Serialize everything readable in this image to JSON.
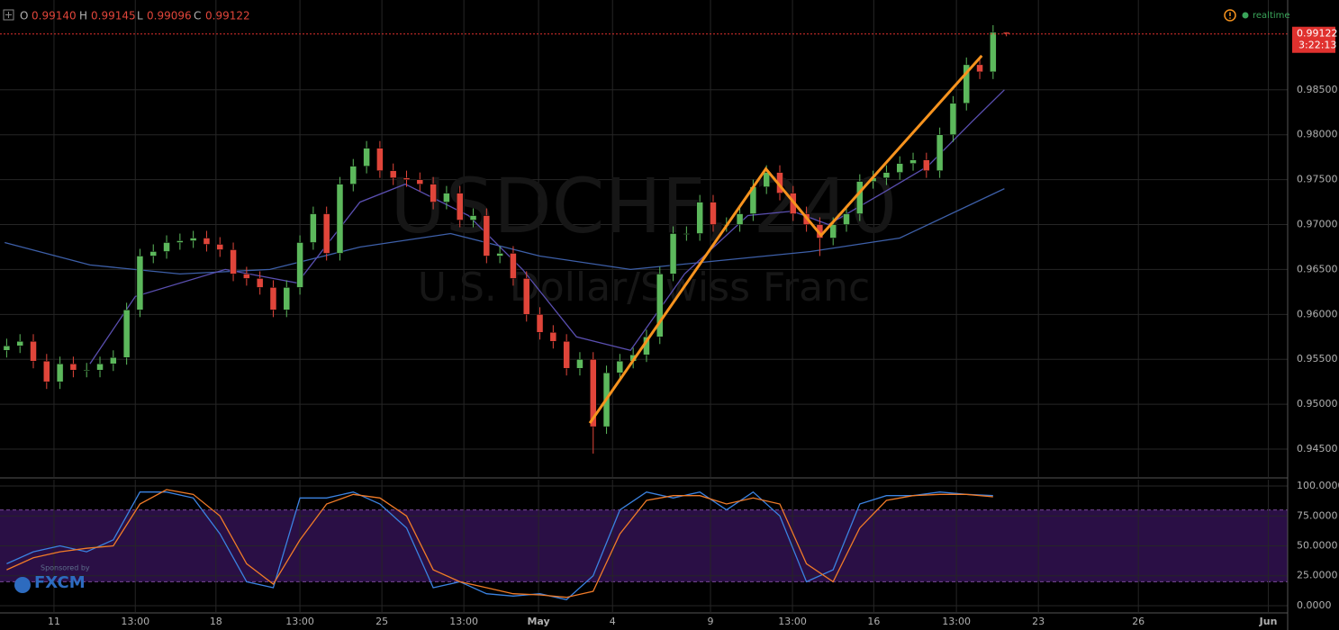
{
  "header": {
    "ohlc": [
      {
        "label": "O",
        "value": "0.99140"
      },
      {
        "label": "H",
        "value": "0.99145"
      },
      {
        "label": "L",
        "value": "0.99096"
      },
      {
        "label": "C",
        "value": "0.99122"
      }
    ],
    "status": "realtime"
  },
  "sponsor": {
    "note": "Sponsored by",
    "brand": "FXCM"
  },
  "chart_data": [
    {
      "type": "candlestick",
      "watermark": [
        "USDCHF, 240",
        "U.S. Dollar/Swiss Franc"
      ],
      "up_color": "#5cb85c",
      "down_color": "#e0453a",
      "xlim": [
        0,
        193.2
      ],
      "ylim": [
        0.9419,
        0.995
      ],
      "yticks": [
        {
          "value": 0.945,
          "label": "0.94500"
        },
        {
          "value": 0.95,
          "label": "0.95000"
        },
        {
          "value": 0.955,
          "label": "0.95500"
        },
        {
          "value": 0.96,
          "label": "0.96000"
        },
        {
          "value": 0.965,
          "label": "0.96500"
        },
        {
          "value": 0.97,
          "label": "0.97000"
        },
        {
          "value": 0.975,
          "label": "0.97500"
        },
        {
          "value": 0.98,
          "label": "0.98000"
        },
        {
          "value": 0.985,
          "label": "0.98500"
        }
      ],
      "last_price": 0.99122,
      "countdown": "3:22:13",
      "last_color": "#e0312e",
      "x": [
        1,
        3,
        5,
        7,
        9,
        11,
        13,
        15,
        17,
        19,
        21,
        23,
        25,
        27,
        29,
        31,
        33,
        35,
        37,
        39,
        41,
        43,
        45,
        47,
        49,
        51,
        53,
        55,
        57,
        59,
        61,
        63,
        65,
        67,
        69,
        71,
        73,
        75,
        77,
        79,
        81,
        83,
        85,
        87,
        89,
        91,
        93,
        95,
        97,
        99,
        101,
        103,
        105,
        107,
        109,
        111,
        113,
        115,
        117,
        119,
        121,
        123,
        125,
        127,
        129,
        131,
        133,
        135,
        137,
        139,
        141,
        143,
        145,
        147,
        149,
        151
      ],
      "open": [
        0.956,
        0.9565,
        0.957,
        0.9548,
        0.9525,
        0.9545,
        0.9538,
        0.9538,
        0.9545,
        0.9552,
        0.9605,
        0.9665,
        0.967,
        0.968,
        0.9682,
        0.9685,
        0.9678,
        0.9672,
        0.9645,
        0.964,
        0.963,
        0.9605,
        0.963,
        0.968,
        0.9712,
        0.9668,
        0.9745,
        0.9765,
        0.9785,
        0.976,
        0.9752,
        0.975,
        0.9745,
        0.9725,
        0.9735,
        0.9705,
        0.971,
        0.9665,
        0.9668,
        0.964,
        0.96,
        0.958,
        0.957,
        0.954,
        0.955,
        0.9475,
        0.9535,
        0.9548,
        0.9555,
        0.9575,
        0.9645,
        0.969,
        0.969,
        0.9725,
        0.97,
        0.97,
        0.9712,
        0.9742,
        0.9758,
        0.9735,
        0.9712,
        0.97,
        0.9685,
        0.97,
        0.9712,
        0.9748,
        0.9752,
        0.9758,
        0.9768,
        0.9772,
        0.976,
        0.98,
        0.9835,
        0.9878,
        0.987,
        0.9914
      ],
      "high": [
        0.9573,
        0.9578,
        0.9578,
        0.9556,
        0.9553,
        0.9553,
        0.9546,
        0.9553,
        0.956,
        0.9613,
        0.9673,
        0.9678,
        0.9688,
        0.969,
        0.9693,
        0.9693,
        0.9686,
        0.968,
        0.9653,
        0.9648,
        0.9638,
        0.9638,
        0.9688,
        0.972,
        0.972,
        0.9753,
        0.9773,
        0.9793,
        0.9793,
        0.9768,
        0.976,
        0.9758,
        0.9753,
        0.9743,
        0.9743,
        0.9718,
        0.9718,
        0.9676,
        0.9676,
        0.9648,
        0.9608,
        0.9588,
        0.9578,
        0.9558,
        0.9558,
        0.9543,
        0.9556,
        0.9563,
        0.9583,
        0.9653,
        0.9698,
        0.9698,
        0.9733,
        0.9733,
        0.9708,
        0.972,
        0.975,
        0.9766,
        0.9766,
        0.9743,
        0.972,
        0.9708,
        0.9708,
        0.972,
        0.9756,
        0.976,
        0.9766,
        0.9776,
        0.978,
        0.978,
        0.9808,
        0.9843,
        0.9886,
        0.9886,
        0.9922,
        0.99145
      ],
      "low": [
        0.9552,
        0.9557,
        0.954,
        0.9517,
        0.9517,
        0.953,
        0.953,
        0.953,
        0.9537,
        0.9544,
        0.9597,
        0.9657,
        0.9662,
        0.9672,
        0.9674,
        0.967,
        0.9664,
        0.9637,
        0.9632,
        0.9622,
        0.9597,
        0.9597,
        0.9622,
        0.9672,
        0.966,
        0.966,
        0.9737,
        0.9757,
        0.9752,
        0.9744,
        0.9742,
        0.9737,
        0.9717,
        0.9717,
        0.9697,
        0.9697,
        0.9657,
        0.9657,
        0.9632,
        0.9592,
        0.9572,
        0.9562,
        0.9532,
        0.9532,
        0.9445,
        0.9467,
        0.9527,
        0.954,
        0.9547,
        0.9567,
        0.9637,
        0.9682,
        0.9682,
        0.9692,
        0.9692,
        0.9692,
        0.9704,
        0.9734,
        0.9727,
        0.9704,
        0.9692,
        0.9665,
        0.9677,
        0.9692,
        0.9704,
        0.974,
        0.9744,
        0.975,
        0.976,
        0.9752,
        0.9752,
        0.9792,
        0.9827,
        0.9862,
        0.9862,
        0.99096
      ],
      "close": [
        0.9565,
        0.957,
        0.9548,
        0.9525,
        0.9545,
        0.9538,
        0.9538,
        0.9545,
        0.9552,
        0.9605,
        0.9665,
        0.967,
        0.968,
        0.9682,
        0.9685,
        0.9678,
        0.9672,
        0.9645,
        0.964,
        0.963,
        0.9605,
        0.963,
        0.968,
        0.9712,
        0.9668,
        0.9745,
        0.9765,
        0.9785,
        0.976,
        0.9752,
        0.975,
        0.9745,
        0.9725,
        0.9735,
        0.9705,
        0.971,
        0.9665,
        0.9668,
        0.964,
        0.96,
        0.958,
        0.957,
        0.954,
        0.955,
        0.9475,
        0.9535,
        0.9548,
        0.9555,
        0.9575,
        0.9645,
        0.969,
        0.969,
        0.9725,
        0.97,
        0.97,
        0.9712,
        0.9742,
        0.9758,
        0.9735,
        0.9712,
        0.97,
        0.9685,
        0.97,
        0.9712,
        0.9748,
        0.9752,
        0.9758,
        0.9768,
        0.9772,
        0.976,
        0.98,
        0.9835,
        0.9878,
        0.987,
        0.9914,
        0.99122
      ],
      "lines": [
        {
          "color": "#3d5fa8",
          "x": [
            0.7,
            13.5,
            27,
            40.5,
            54,
            67.6,
            81,
            94.6,
            108,
            121.6,
            135,
            150.7
          ],
          "values": [
            0.968,
            0.9655,
            0.9645,
            0.965,
            0.9675,
            0.969,
            0.9665,
            0.965,
            0.966,
            0.967,
            0.9685,
            0.974
          ]
        },
        {
          "color": "#5a4fb0",
          "x": [
            13.5,
            20.3,
            33.8,
            44.6,
            54,
            60.8,
            70.3,
            78.4,
            86.5,
            94.6,
            102.7,
            112.2,
            118.9,
            124.3,
            132.4,
            139.2,
            145.9,
            150.7
          ],
          "values": [
            0.9545,
            0.962,
            0.965,
            0.9635,
            0.9725,
            0.9745,
            0.971,
            0.965,
            0.9575,
            0.956,
            0.9645,
            0.971,
            0.9715,
            0.97,
            0.9735,
            0.9765,
            0.9815,
            0.985
          ]
        }
      ],
      "trendline": {
        "color": "#f7931e",
        "x": [
          88.5,
          114.9,
          123.2,
          147.3
        ],
        "values": [
          0.9479,
          0.9762,
          0.9688,
          0.9888
        ]
      }
    },
    {
      "type": "line",
      "xlim": [
        0,
        193.2
      ],
      "ylim": [
        -5.3,
        105.3
      ],
      "yticks": [
        {
          "value": 100,
          "label": "100.0000"
        },
        {
          "value": 75,
          "label": "75.0000"
        },
        {
          "value": 50,
          "label": "50.0000"
        },
        {
          "value": 25,
          "label": "25.0000"
        },
        {
          "value": 0,
          "label": "0.0000"
        }
      ],
      "bands": [
        20,
        80
      ],
      "band_color": "#2a0f45",
      "xticks": [
        {
          "value": 8.1,
          "label": "11"
        },
        {
          "value": 20.3,
          "label": "13:00"
        },
        {
          "value": 32.4,
          "label": "18"
        },
        {
          "value": 45,
          "label": "13:00"
        },
        {
          "value": 57.3,
          "label": "25"
        },
        {
          "value": 69.6,
          "label": "13:00"
        },
        {
          "value": 80.8,
          "label": "May"
        },
        {
          "value": 91.9,
          "label": "4"
        },
        {
          "value": 106.6,
          "label": "9"
        },
        {
          "value": 118.9,
          "label": "13:00"
        },
        {
          "value": 131.1,
          "label": "16"
        },
        {
          "value": 143.5,
          "label": "13:00"
        },
        {
          "value": 155.8,
          "label": "23"
        },
        {
          "value": 170.8,
          "label": "26"
        },
        {
          "value": 190.3,
          "label": "Jun"
        }
      ],
      "x": [
        1,
        5,
        9,
        13,
        17,
        21,
        25,
        29,
        33,
        37,
        41,
        45,
        49,
        53,
        57,
        61,
        65,
        69,
        73,
        77,
        81,
        85,
        89,
        93,
        97,
        101,
        105,
        109,
        113,
        117,
        121,
        125,
        129,
        133,
        137,
        141,
        145,
        149
      ],
      "series": [
        {
          "color": "#3b82e0",
          "values": [
            35,
            45,
            50,
            45,
            55,
            95,
            95,
            90,
            60,
            20,
            15,
            90,
            90,
            95,
            85,
            65,
            15,
            20,
            10,
            8,
            10,
            5,
            25,
            80,
            95,
            90,
            95,
            80,
            95,
            75,
            20,
            30,
            85,
            92,
            92,
            95,
            93,
            92
          ]
        },
        {
          "color": "#f07b28",
          "values": [
            30,
            40,
            45,
            48,
            50,
            85,
            97,
            93,
            75,
            35,
            18,
            55,
            85,
            93,
            90,
            75,
            30,
            20,
            15,
            10,
            9,
            7,
            12,
            60,
            88,
            92,
            92,
            85,
            90,
            85,
            35,
            20,
            65,
            88,
            92,
            93,
            93,
            91
          ]
        }
      ]
    }
  ]
}
